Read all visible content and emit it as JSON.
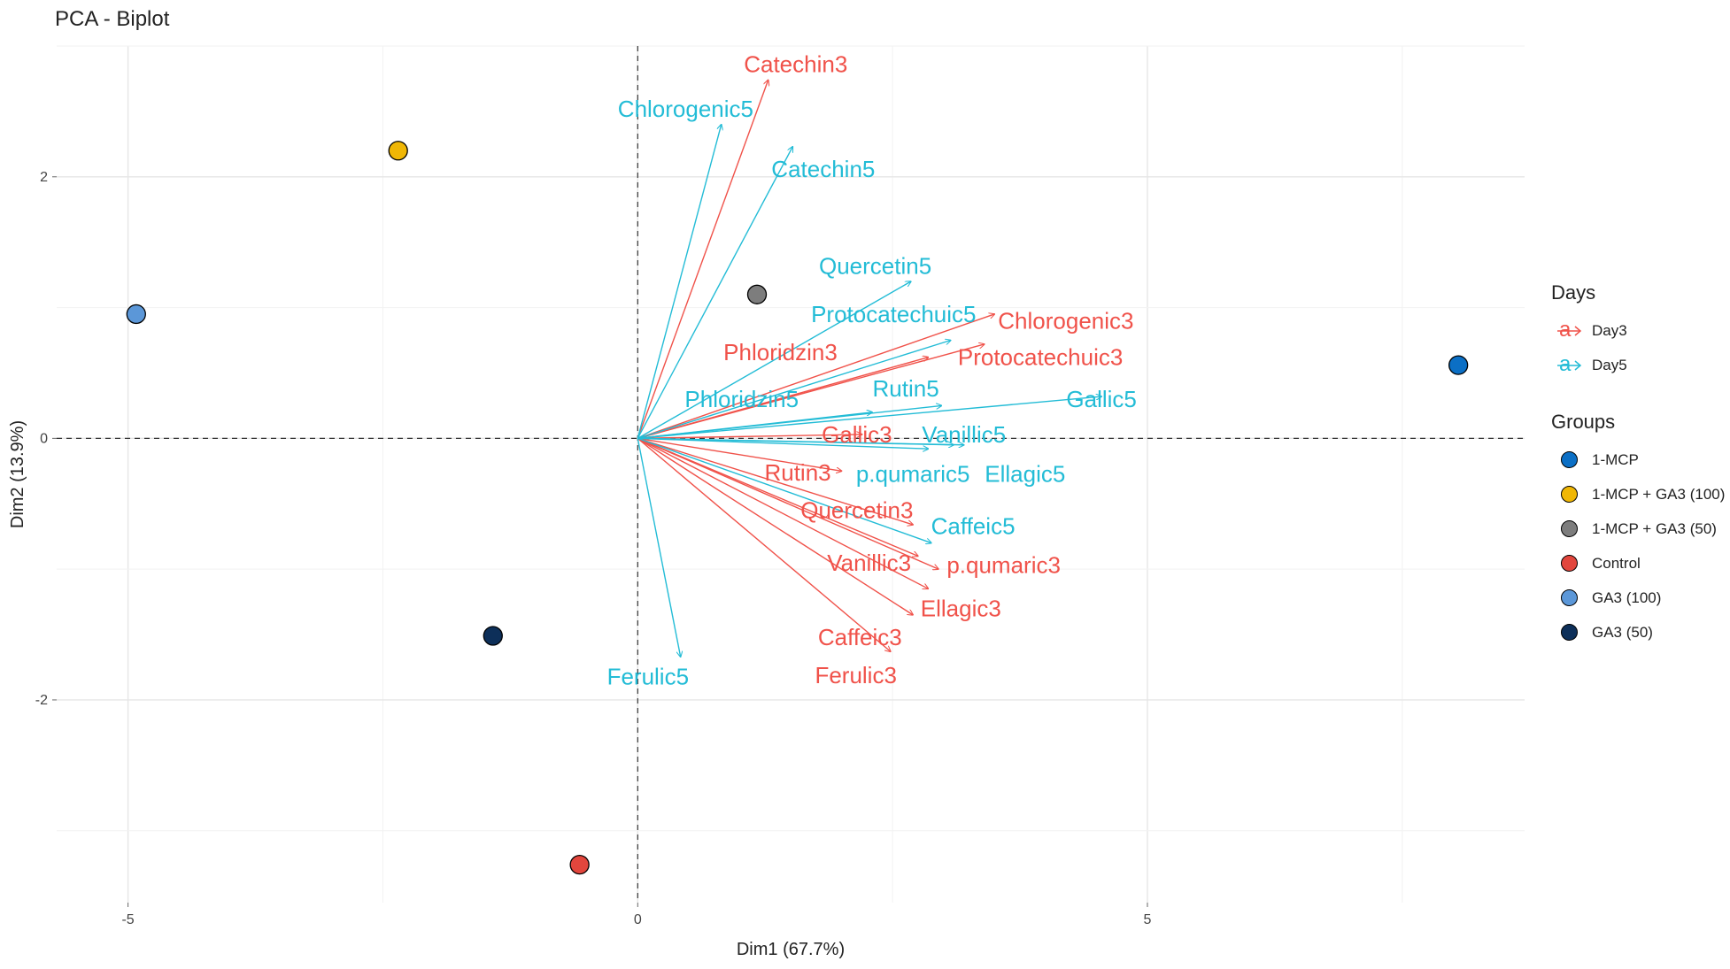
{
  "title": "PCA - Biplot",
  "chart_data": {
    "type": "scatter",
    "subtype": "pca-biplot",
    "title": "PCA - Biplot",
    "xlabel": "Dim1 (67.7%)",
    "ylabel": "Dim2 (13.9%)",
    "xlim": [
      -5.7,
      8.7
    ],
    "ylim": [
      -3.55,
      3.0
    ],
    "xticks": [
      -5,
      0,
      5
    ],
    "yticks": [
      -2,
      0,
      2
    ],
    "grid": true,
    "reference_lines": {
      "x": 0,
      "y": 0,
      "style": "dashed"
    },
    "points": [
      {
        "group": "1-MCP",
        "x": 8.05,
        "y": 0.56
      },
      {
        "group": "1-MCP + GA3 (100)",
        "x": -2.35,
        "y": 2.2
      },
      {
        "group": "1-MCP + GA3 (50)",
        "x": 1.17,
        "y": 1.1
      },
      {
        "group": "Control",
        "x": -0.57,
        "y": -3.26
      },
      {
        "group": "GA3 (100)",
        "x": -4.92,
        "y": 0.95
      },
      {
        "group": "GA3 (50)",
        "x": -1.42,
        "y": -1.51
      }
    ],
    "vectors": [
      {
        "name": "Catechin3",
        "day": "Day3",
        "x": 1.28,
        "y": 2.74,
        "lx": 1.55,
        "ly": 2.86
      },
      {
        "name": "Chlorogenic3",
        "day": "Day3",
        "x": 3.5,
        "y": 0.95,
        "lx": 4.2,
        "ly": 0.9
      },
      {
        "name": "Protocatechuic3",
        "day": "Day3",
        "x": 3.4,
        "y": 0.72,
        "lx": 3.95,
        "ly": 0.62
      },
      {
        "name": "Phloridzin3",
        "day": "Day3",
        "x": 2.85,
        "y": 0.62,
        "lx": 1.4,
        "ly": 0.66
      },
      {
        "name": "Gallic3",
        "day": "Day3",
        "x": 2.2,
        "y": 0.03,
        "lx": 2.15,
        "ly": 0.03
      },
      {
        "name": "Rutin3",
        "day": "Day3",
        "x": 2.0,
        "y": -0.25,
        "lx": 1.57,
        "ly": -0.26
      },
      {
        "name": "Quercetin3",
        "day": "Day3",
        "x": 2.7,
        "y": -0.66,
        "lx": 2.15,
        "ly": -0.55
      },
      {
        "name": "Vanillic3",
        "day": "Day3",
        "x": 2.75,
        "y": -0.9,
        "lx": 2.27,
        "ly": -0.95
      },
      {
        "name": "p.qumaric3",
        "day": "Day3",
        "x": 2.95,
        "y": -1.0,
        "lx": 3.59,
        "ly": -0.97
      },
      {
        "name": "Ellagic3",
        "day": "Day3",
        "x": 2.85,
        "y": -1.15,
        "lx": 3.17,
        "ly": -1.3
      },
      {
        "name": "Caffeic3",
        "day": "Day3",
        "x": 2.7,
        "y": -1.35,
        "lx": 2.18,
        "ly": -1.52
      },
      {
        "name": "Ferulic3",
        "day": "Day3",
        "x": 2.48,
        "y": -1.63,
        "lx": 2.14,
        "ly": -1.81
      },
      {
        "name": "Chlorogenic5",
        "day": "Day5",
        "x": 0.82,
        "y": 2.4,
        "lx": 0.47,
        "ly": 2.52
      },
      {
        "name": "Catechin5",
        "day": "Day5",
        "x": 1.52,
        "y": 2.23,
        "lx": 1.82,
        "ly": 2.06
      },
      {
        "name": "Quercetin5",
        "day": "Day5",
        "x": 2.68,
        "y": 1.2,
        "lx": 2.33,
        "ly": 1.32
      },
      {
        "name": "Protocatechuic5",
        "day": "Day5",
        "x": 3.07,
        "y": 0.75,
        "lx": 2.51,
        "ly": 0.95
      },
      {
        "name": "Rutin5",
        "day": "Day5",
        "x": 2.98,
        "y": 0.25,
        "lx": 2.63,
        "ly": 0.38
      },
      {
        "name": "Gallic5",
        "day": "Day5",
        "x": 4.55,
        "y": 0.32,
        "lx": 4.55,
        "ly": 0.3
      },
      {
        "name": "Phloridzin5",
        "day": "Day5",
        "x": 2.3,
        "y": 0.2,
        "lx": 1.02,
        "ly": 0.3
      },
      {
        "name": "Vanillic5",
        "day": "Day5",
        "x": 3.1,
        "y": -0.05,
        "lx": 3.2,
        "ly": 0.03
      },
      {
        "name": "Ellagic5",
        "day": "Day5",
        "x": 3.2,
        "y": -0.05,
        "lx": 3.8,
        "ly": -0.27
      },
      {
        "name": "p.qumaric5",
        "day": "Day5",
        "x": 2.85,
        "y": -0.08,
        "lx": 2.7,
        "ly": -0.27
      },
      {
        "name": "Caffeic5",
        "day": "Day5",
        "x": 2.88,
        "y": -0.8,
        "lx": 3.29,
        "ly": -0.67
      },
      {
        "name": "Ferulic5",
        "day": "Day5",
        "x": 0.42,
        "y": -1.67,
        "lx": 0.1,
        "ly": -1.82
      }
    ],
    "legends": {
      "days": {
        "title": "Days",
        "items": [
          {
            "label": "Day3",
            "color": "#f0524a"
          },
          {
            "label": "Day5",
            "color": "#23bcd6"
          }
        ]
      },
      "groups": {
        "title": "Groups",
        "items": [
          {
            "label": "1-MCP",
            "color": "#0b6fc5"
          },
          {
            "label": "1-MCP + GA3 (100)",
            "color": "#f0b705"
          },
          {
            "label": "1-MCP + GA3 (50)",
            "color": "#7d7d7d"
          },
          {
            "label": "Control",
            "color": "#e2463d"
          },
          {
            "label": "GA3 (100)",
            "color": "#5b97d8"
          },
          {
            "label": "GA3 (50)",
            "color": "#0d2f59"
          }
        ]
      }
    }
  }
}
